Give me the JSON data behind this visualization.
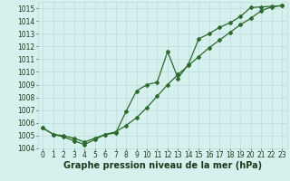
{
  "line1_x": [
    0,
    1,
    2,
    3,
    4,
    5,
    6,
    7,
    8,
    9,
    10,
    11,
    12,
    13,
    14,
    15,
    16,
    17,
    18,
    19,
    20,
    21,
    22,
    23
  ],
  "line1_y": [
    1005.6,
    1005.1,
    1005.0,
    1004.8,
    1004.5,
    1004.8,
    1005.1,
    1005.3,
    1005.8,
    1006.4,
    1007.2,
    1008.1,
    1009.0,
    1009.8,
    1010.5,
    1011.2,
    1011.9,
    1012.5,
    1013.1,
    1013.7,
    1014.2,
    1014.8,
    1015.1,
    1015.2
  ],
  "line2_x": [
    0,
    1,
    2,
    3,
    4,
    5,
    6,
    7,
    8,
    9,
    10,
    11,
    12,
    13,
    14,
    15,
    16,
    17,
    18,
    19,
    20,
    21,
    22,
    23
  ],
  "line2_y": [
    1005.6,
    1005.1,
    1004.9,
    1004.6,
    1004.3,
    1004.7,
    1005.1,
    1005.2,
    1006.9,
    1008.5,
    1009.0,
    1009.2,
    1011.6,
    1009.5,
    1010.6,
    1012.6,
    1013.0,
    1013.5,
    1013.85,
    1014.35,
    1015.05,
    1015.1,
    1015.15,
    1015.2
  ],
  "line_color": "#2d6a2d",
  "bg_color": "#d6f0ee",
  "grid_color": "#b8dcd8",
  "xlabel": "Graphe pression niveau de la mer (hPa)",
  "xlabel_color": "#1a3a1a",
  "ylim": [
    1004,
    1015.5
  ],
  "xlim": [
    -0.5,
    23.5
  ],
  "yticks": [
    1004,
    1005,
    1006,
    1007,
    1008,
    1009,
    1010,
    1011,
    1012,
    1013,
    1014,
    1015
  ],
  "xticks": [
    0,
    1,
    2,
    3,
    4,
    5,
    6,
    7,
    8,
    9,
    10,
    11,
    12,
    13,
    14,
    15,
    16,
    17,
    18,
    19,
    20,
    21,
    22,
    23
  ],
  "tick_fontsize": 5.5,
  "xlabel_fontsize": 7.0,
  "marker": "D",
  "marker_size": 2.0,
  "line_width": 0.9
}
